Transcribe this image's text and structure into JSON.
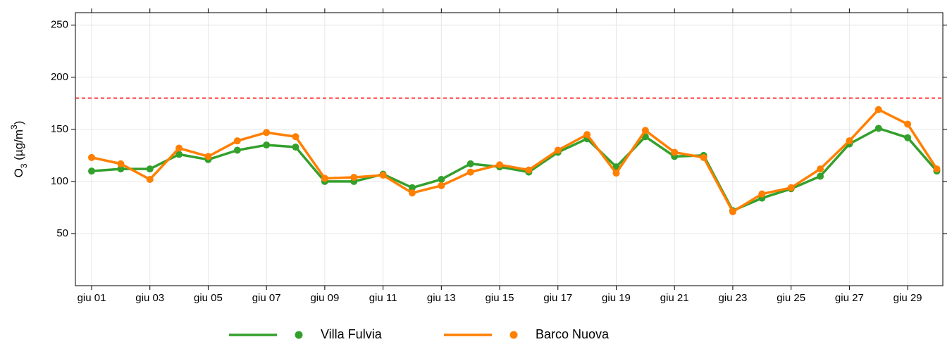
{
  "chart_data": {
    "type": "line",
    "ylabel": {
      "base": "O",
      "sub": "3",
      "mid": " (µg/m",
      "sup": "3",
      "end": ")"
    },
    "categories": [
      "giu 01",
      null,
      "giu 03",
      null,
      "giu 05",
      null,
      "giu 07",
      null,
      "giu 09",
      null,
      "giu 11",
      null,
      "giu 13",
      null,
      "giu 15",
      null,
      "giu 17",
      null,
      "giu 19",
      null,
      "giu 21",
      null,
      "giu 23",
      null,
      "giu 25",
      null,
      "giu 27",
      null,
      "giu 29",
      null
    ],
    "series": [
      {
        "name": "Villa Fulvia",
        "color": "#33a02c",
        "values": [
          110,
          112,
          112,
          126,
          121,
          130,
          135,
          133,
          100,
          100,
          107,
          94,
          102,
          117,
          114,
          109,
          128,
          141,
          114,
          143,
          124,
          125,
          72,
          84,
          93,
          105,
          136,
          151,
          142,
          110
        ]
      },
      {
        "name": "Barco Nuova",
        "color": "#ff7f00",
        "values": [
          123,
          117,
          102,
          132,
          124,
          139,
          147,
          143,
          103,
          104,
          106,
          89,
          96,
          109,
          116,
          111,
          130,
          145,
          108,
          149,
          128,
          123,
          71,
          88,
          94,
          112,
          139,
          169,
          155,
          112
        ]
      }
    ],
    "reference_line": {
      "value": 180,
      "color": "#ff0000"
    },
    "ylim": [
      0,
      262
    ],
    "yticks": [
      50,
      100,
      150,
      200,
      250
    ],
    "grid": true
  }
}
